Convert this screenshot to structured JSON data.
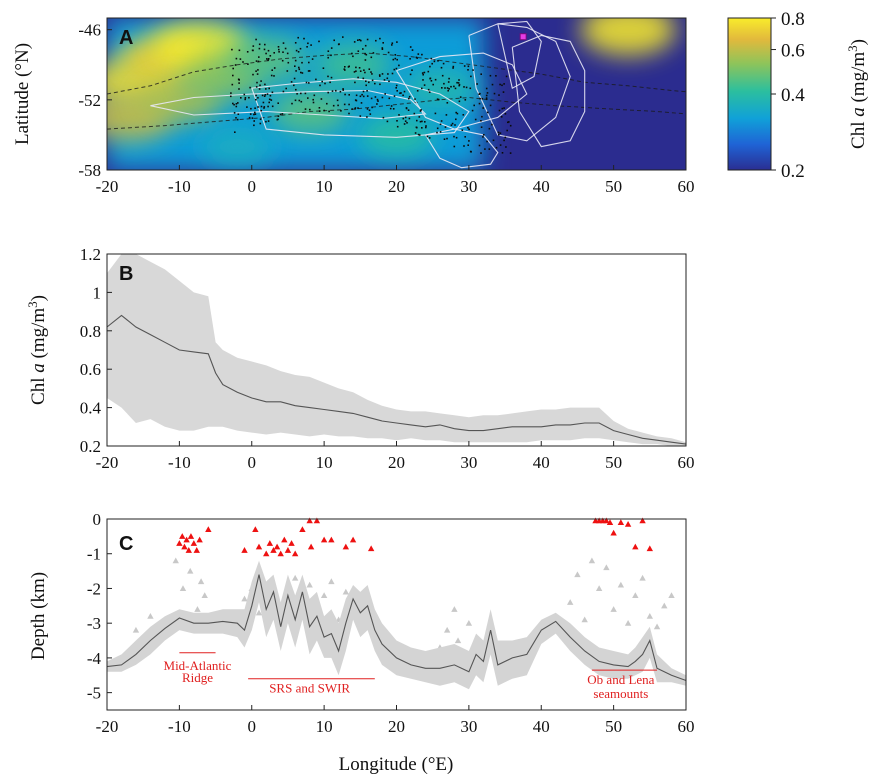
{
  "chart_data": [
    {
      "type": "heatmap",
      "panel_label": "A",
      "ylabel": "Latitude (°N)",
      "xlim": [
        -20,
        60
      ],
      "ylim": [
        -58,
        -45
      ],
      "x_ticks": [
        "-20",
        "-10",
        "0",
        "10",
        "20",
        "30",
        "40",
        "50",
        "60"
      ],
      "y_ticks": [
        "-46",
        "-52",
        "-58"
      ],
      "colorbar": {
        "label_prefix": "Chl ",
        "label_var": "a",
        "label_units": " (mg/m",
        "label_exp": "3",
        "label_close": ")",
        "ticks": [
          "0.8",
          "0.6",
          "0.4",
          "0.2"
        ],
        "tick_values": [
          0.8,
          0.6,
          0.4,
          0.2
        ],
        "range": [
          0.2,
          0.8
        ],
        "scale": "log",
        "colors": [
          "#2a2e92",
          "#1f64d6",
          "#10a1d8",
          "#2cbf9e",
          "#8ec45a",
          "#e2b93c",
          "#f9ec2b"
        ]
      },
      "background_colors": {
        "low": "#2b2c8f",
        "mid": "#1a7fd6",
        "high": "#f2c83a"
      },
      "regions": [
        {
          "lon": -16,
          "lat": -50.5,
          "level": 0.75
        },
        {
          "lon": -12,
          "lat": -48.5,
          "level": 0.7
        },
        {
          "lon": -7,
          "lat": -47.5,
          "level": 0.85
        },
        {
          "lon": -17,
          "lat": -53.5,
          "level": 0.6
        },
        {
          "lon": -10,
          "lat": -52,
          "level": 0.55
        },
        {
          "lon": -4,
          "lat": -50,
          "level": 0.5
        },
        {
          "lon": 2,
          "lat": -48.5,
          "level": 0.45
        },
        {
          "lon": 8,
          "lat": -53,
          "level": 0.45
        },
        {
          "lon": 14,
          "lat": -49,
          "level": 0.42
        },
        {
          "lon": 20,
          "lat": -55,
          "level": 0.4
        },
        {
          "lon": 26,
          "lat": -51,
          "level": 0.38
        },
        {
          "lon": -2,
          "lat": -56,
          "level": 0.35
        },
        {
          "lon": 52,
          "lat": -46,
          "level": 0.8
        }
      ],
      "float_tracks": [
        {
          "lon": [
            -14,
            -8,
            0,
            8,
            16,
            22,
            24,
            18,
            10,
            2,
            -8,
            -14
          ],
          "lat": [
            -52.5,
            -51.8,
            -51.5,
            -51.3,
            -51.2,
            -52,
            -53.2,
            -53.6,
            -53.3,
            -53,
            -53.3,
            -52.5
          ]
        },
        {
          "lon": [
            0,
            6,
            14,
            20,
            26,
            30,
            28,
            20,
            10,
            2,
            0
          ],
          "lat": [
            -51,
            -50.6,
            -50.2,
            -50.5,
            -51.5,
            -53,
            -54.8,
            -55.2,
            -55,
            -54.5,
            -51
          ]
        },
        {
          "lon": [
            20,
            26,
            32,
            36,
            38,
            34,
            28,
            24,
            22,
            20
          ],
          "lat": [
            -49.5,
            -48.3,
            -48,
            -49,
            -51.5,
            -53.5,
            -54.5,
            -53.5,
            -51.5,
            -49.5
          ]
        },
        {
          "lon": [
            30,
            34,
            38,
            42,
            44,
            42,
            38,
            34,
            31,
            30
          ],
          "lat": [
            -46.5,
            -45.5,
            -45.8,
            -47,
            -50,
            -53.5,
            -55.5,
            -55,
            -51,
            -46.5
          ]
        },
        {
          "lon": [
            36,
            40,
            44,
            46,
            46,
            44,
            40,
            37,
            36
          ],
          "lat": [
            -47.5,
            -46.5,
            -47,
            -49.5,
            -53,
            -55.5,
            -56,
            -53,
            -47.5
          ]
        },
        {
          "lon": [
            34,
            38,
            40,
            39,
            36,
            34
          ],
          "lat": [
            -45.5,
            -45.3,
            -47,
            -50,
            -51,
            -45.5
          ]
        },
        {
          "lon": [
            24,
            28,
            32,
            34,
            33,
            29,
            26,
            24
          ],
          "lat": [
            -55,
            -54.5,
            -55,
            -56.5,
            -57.5,
            -57.8,
            -57,
            -55
          ]
        }
      ],
      "fronts": [
        {
          "lon": [
            -20,
            -14,
            -8,
            -2,
            4,
            10,
            16,
            22,
            28,
            34,
            40,
            46,
            52,
            58,
            60
          ],
          "lat": [
            -51.5,
            -50.8,
            -49.6,
            -49,
            -48.5,
            -48.2,
            -48,
            -48.3,
            -48.8,
            -49.3,
            -49.8,
            -50.5,
            -50.8,
            -51.2,
            -51.3
          ]
        },
        {
          "lon": [
            -20,
            -12,
            -4,
            2,
            8,
            14,
            20,
            26,
            30,
            36,
            42,
            50,
            56,
            60
          ],
          "lat": [
            -54.5,
            -54.2,
            -53.8,
            -53.5,
            -53,
            -52.8,
            -52.4,
            -52,
            -51.8,
            -52.2,
            -52.5,
            -52.8,
            -53,
            -53.2
          ]
        }
      ],
      "float_cluster": {
        "lon_range": [
          -3,
          36
        ],
        "lat_range": [
          -56.5,
          -46.5
        ]
      },
      "marker": {
        "lon": 37.5,
        "lat": -46.6,
        "color": "#e53ce5"
      }
    },
    {
      "type": "area",
      "panel_label": "B",
      "ylabel_prefix": "Chl ",
      "ylabel_var": "a",
      "ylabel_units": " (mg/m",
      "ylabel_exp": "3",
      "ylabel_close": ")",
      "xlim": [
        -20,
        60
      ],
      "ylim": [
        0.2,
        1.2
      ],
      "x_ticks": [
        "-20",
        "-10",
        "0",
        "10",
        "20",
        "30",
        "40",
        "50",
        "60"
      ],
      "y_ticks": [
        "0.2",
        "0.4",
        "0.6",
        "0.8",
        "1",
        "1.2"
      ],
      "series": [
        {
          "x": [
            -20,
            -18,
            -16,
            -14,
            -12,
            -10,
            -8,
            -6,
            -5,
            -4,
            -2,
            0,
            2,
            4,
            6,
            8,
            10,
            12,
            14,
            16,
            18,
            20,
            22,
            24,
            26,
            28,
            30,
            32,
            34,
            36,
            38,
            40,
            42,
            44,
            46,
            48,
            50,
            52,
            54,
            56,
            58,
            60
          ],
          "values": [
            0.82,
            0.88,
            0.82,
            0.78,
            0.74,
            0.7,
            0.69,
            0.68,
            0.58,
            0.52,
            0.48,
            0.45,
            0.43,
            0.43,
            0.41,
            0.4,
            0.39,
            0.38,
            0.37,
            0.35,
            0.33,
            0.32,
            0.31,
            0.3,
            0.31,
            0.29,
            0.28,
            0.28,
            0.29,
            0.3,
            0.3,
            0.3,
            0.31,
            0.31,
            0.32,
            0.32,
            0.28,
            0.26,
            0.24,
            0.23,
            0.22,
            0.21
          ],
          "upper": [
            1.1,
            1.2,
            1.2,
            1.16,
            1.12,
            1.06,
            1.0,
            0.98,
            0.74,
            0.7,
            0.66,
            0.64,
            0.62,
            0.59,
            0.57,
            0.56,
            0.53,
            0.5,
            0.48,
            0.44,
            0.41,
            0.39,
            0.38,
            0.38,
            0.37,
            0.36,
            0.35,
            0.36,
            0.36,
            0.37,
            0.38,
            0.39,
            0.39,
            0.4,
            0.4,
            0.4,
            0.33,
            0.29,
            0.27,
            0.25,
            0.24,
            0.22
          ],
          "lower": [
            0.45,
            0.4,
            0.32,
            0.34,
            0.3,
            0.28,
            0.28,
            0.3,
            0.3,
            0.3,
            0.28,
            0.27,
            0.26,
            0.27,
            0.26,
            0.25,
            0.26,
            0.25,
            0.25,
            0.24,
            0.24,
            0.23,
            0.24,
            0.23,
            0.23,
            0.22,
            0.22,
            0.22,
            0.22,
            0.22,
            0.22,
            0.23,
            0.23,
            0.23,
            0.24,
            0.24,
            0.23,
            0.22,
            0.21,
            0.21,
            0.2,
            0.2
          ]
        }
      ],
      "colors": {
        "line": "#555555",
        "band": "#d8d8d8"
      }
    },
    {
      "type": "area",
      "panel_label": "C",
      "xlabel": "Longitude (°E)",
      "ylabel": "Depth (km)",
      "xlim": [
        -20,
        60
      ],
      "ylim": [
        -5.5,
        0
      ],
      "x_ticks": [
        "-20",
        "-10",
        "0",
        "10",
        "20",
        "30",
        "40",
        "50",
        "60"
      ],
      "y_ticks": [
        "0",
        "-1",
        "-2",
        "-3",
        "-4",
        "-5"
      ],
      "series": [
        {
          "x": [
            -20,
            -18,
            -16,
            -14,
            -12,
            -10,
            -8,
            -6,
            -4,
            -2,
            -1,
            0,
            1,
            2,
            3,
            4,
            5,
            6,
            7,
            8,
            9,
            10,
            11,
            12,
            13,
            14,
            15,
            16,
            17,
            18,
            20,
            22,
            24,
            26,
            28,
            30,
            31,
            32,
            33,
            34,
            36,
            38,
            40,
            42,
            44,
            46,
            48,
            50,
            52,
            53,
            54,
            55,
            56,
            58,
            60
          ],
          "values": [
            -4.25,
            -4.2,
            -3.9,
            -3.5,
            -3.15,
            -2.85,
            -3.0,
            -3.0,
            -2.95,
            -3.0,
            -3.2,
            -2.5,
            -1.6,
            -2.6,
            -2.1,
            -3.1,
            -2.2,
            -2.9,
            -2.1,
            -3.1,
            -2.8,
            -3.4,
            -3.3,
            -3.8,
            -3.0,
            -2.3,
            -2.7,
            -2.5,
            -3.2,
            -3.6,
            -4.0,
            -4.2,
            -4.3,
            -4.3,
            -4.2,
            -4.4,
            -3.9,
            -4.1,
            -3.2,
            -4.2,
            -4.0,
            -3.9,
            -3.2,
            -2.95,
            -3.4,
            -3.8,
            -4.1,
            -4.2,
            -4.25,
            -4.1,
            -3.9,
            -3.5,
            -4.3,
            -4.5,
            -4.65
          ],
          "upper": [
            -4.1,
            -3.9,
            -3.5,
            -3.1,
            -2.8,
            -2.6,
            -2.7,
            -2.7,
            -2.6,
            -2.6,
            -2.6,
            -1.8,
            -1.2,
            -1.8,
            -1.6,
            -2.4,
            -1.6,
            -2.2,
            -1.6,
            -2.3,
            -2.1,
            -2.8,
            -2.6,
            -3.0,
            -2.3,
            -1.9,
            -2.1,
            -1.9,
            -2.6,
            -3.0,
            -3.5,
            -3.7,
            -3.8,
            -3.7,
            -3.6,
            -3.8,
            -3.3,
            -3.5,
            -2.6,
            -3.5,
            -3.5,
            -3.4,
            -2.9,
            -2.7,
            -3.0,
            -3.4,
            -3.7,
            -3.8,
            -3.9,
            -3.7,
            -3.4,
            -3.1,
            -3.9,
            -4.3,
            -4.5
          ],
          "lower": [
            -4.4,
            -4.4,
            -4.2,
            -3.9,
            -3.5,
            -3.2,
            -3.3,
            -3.3,
            -3.3,
            -3.4,
            -3.7,
            -3.2,
            -2.4,
            -3.4,
            -2.9,
            -3.8,
            -3.0,
            -3.7,
            -2.9,
            -3.9,
            -3.5,
            -4.0,
            -4.0,
            -4.5,
            -3.8,
            -2.9,
            -3.4,
            -3.2,
            -3.8,
            -4.2,
            -4.5,
            -4.6,
            -4.7,
            -4.8,
            -4.7,
            -4.9,
            -4.5,
            -4.7,
            -3.9,
            -4.8,
            -4.6,
            -4.5,
            -3.6,
            -3.3,
            -3.8,
            -4.2,
            -4.5,
            -4.6,
            -4.6,
            -4.5,
            -4.4,
            -4.0,
            -4.7,
            -4.7,
            -4.8
          ]
        }
      ],
      "red_triangles": {
        "x": [
          -10,
          -9.6,
          -9.3,
          -9,
          -8.7,
          -8.4,
          -8,
          -7.6,
          -7.2,
          -6,
          -1,
          0.5,
          1,
          2,
          2.5,
          3,
          3.5,
          4,
          4.5,
          5,
          5.5,
          6,
          7,
          8,
          8.2,
          9,
          10,
          11,
          13,
          14,
          16.5,
          47.5,
          48,
          48.5,
          49,
          49.5,
          50,
          51,
          52,
          53,
          54,
          55
        ],
        "values": [
          -0.7,
          -0.5,
          -0.8,
          -0.6,
          -0.9,
          -0.5,
          -0.7,
          -0.9,
          -0.6,
          -0.3,
          -0.9,
          -0.3,
          -0.8,
          -1.0,
          -0.7,
          -0.9,
          -0.8,
          -1.0,
          -0.6,
          -0.9,
          -0.7,
          -1.0,
          -0.3,
          -0.05,
          -0.8,
          -0.05,
          -0.6,
          -0.6,
          -0.8,
          -0.6,
          -0.85,
          -0.05,
          -0.05,
          -0.05,
          -0.05,
          -0.1,
          -0.4,
          -0.1,
          -0.15,
          -0.8,
          -0.05,
          -0.85
        ]
      },
      "grey_triangles": {
        "x": [
          -16,
          -14,
          -12,
          -10.5,
          -9.5,
          -8.5,
          -7.5,
          -7,
          -6.5,
          -5.5,
          -1,
          0,
          1,
          2,
          3,
          4,
          5,
          6,
          7,
          8,
          9,
          10,
          11,
          12,
          13,
          14,
          15,
          16,
          18,
          19,
          24,
          26,
          27,
          28,
          28.5,
          29,
          30,
          31,
          32,
          33,
          34,
          35,
          44,
          45,
          46,
          47,
          48,
          49,
          50,
          51,
          52,
          53,
          54,
          55,
          56,
          57,
          58
        ],
        "values": [
          -3.2,
          -2.8,
          -3.0,
          -1.2,
          -2.0,
          -1.5,
          -2.6,
          -1.8,
          -2.2,
          -2.9,
          -2.3,
          -2.0,
          -2.7,
          -2.2,
          -1.9,
          -2.5,
          -2.1,
          -1.7,
          -2.4,
          -1.9,
          -2.6,
          -2.2,
          -1.8,
          -2.9,
          -2.1,
          -2.4,
          -3.1,
          -2.6,
          -3.6,
          -3.4,
          -4.0,
          -3.7,
          -3.2,
          -2.6,
          -3.5,
          -4.1,
          -3.0,
          -3.8,
          -4.2,
          -3.6,
          -3.9,
          -4.0,
          -2.4,
          -1.6,
          -2.9,
          -1.2,
          -2.0,
          -1.4,
          -2.6,
          -1.9,
          -3.0,
          -2.2,
          -1.7,
          -2.8,
          -3.1,
          -2.5,
          -2.2
        ]
      },
      "annotations": [
        {
          "lines": [
            "Mid-Atlantic",
            "Ridge"
          ],
          "line_x": [
            -10,
            -5
          ],
          "line_y": -3.85,
          "text_x": -7.5,
          "text_y": [
            -4.35,
            -4.7
          ]
        },
        {
          "lines": [
            "SRS and SWIR"
          ],
          "line_x": [
            -0.5,
            17
          ],
          "line_y": -4.6,
          "text_x": 8,
          "text_y": [
            -5.0
          ]
        },
        {
          "lines": [
            "Ob and Lena",
            "seamounts"
          ],
          "line_x": [
            47,
            56
          ],
          "line_y": -4.35,
          "text_x": 51,
          "text_y": [
            -4.75,
            -5.15
          ]
        }
      ],
      "colors": {
        "line": "#555555",
        "band": "#d4d4d4",
        "red": "#ee1111",
        "grey": "#c8c8c8",
        "annot": "#e02020"
      }
    }
  ]
}
